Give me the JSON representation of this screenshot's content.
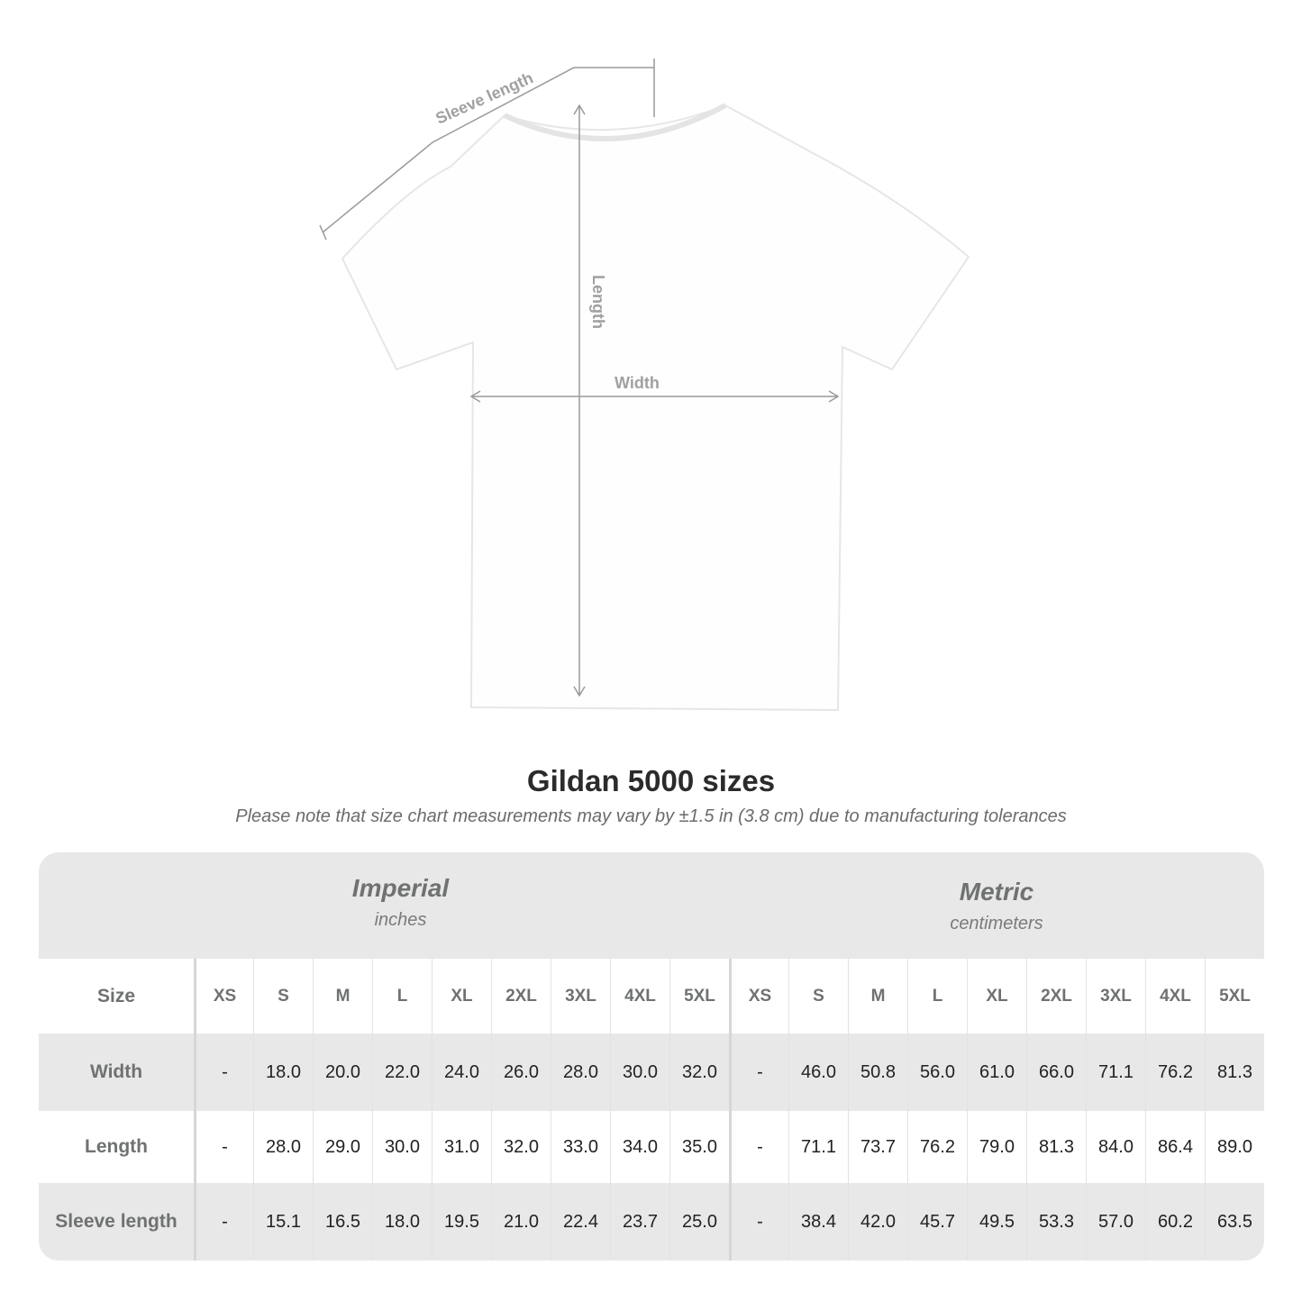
{
  "diagram": {
    "labels": {
      "sleeve": "Sleeve length",
      "length": "Length",
      "width": "Width"
    },
    "shirt_color": "#ffffff",
    "line_color": "#9a9a9a"
  },
  "title": "Gildan 5000 sizes",
  "subtitle": "Please note that size chart measurements may vary by ±1.5 in (3.8 cm) due to manufacturing tolerances",
  "table": {
    "imperial": {
      "name": "Imperial",
      "unit": "inches"
    },
    "metric": {
      "name": "Metric",
      "unit": "centimeters"
    },
    "size_label": "Size",
    "sizes": [
      "XS",
      "S",
      "M",
      "L",
      "XL",
      "2XL",
      "3XL",
      "4XL",
      "5XL"
    ],
    "rows": [
      {
        "label": "Width",
        "imperial": [
          "-",
          "18.0",
          "20.0",
          "22.0",
          "24.0",
          "26.0",
          "28.0",
          "30.0",
          "32.0"
        ],
        "metric": [
          "-",
          "46.0",
          "50.8",
          "56.0",
          "61.0",
          "66.0",
          "71.1",
          "76.2",
          "81.3"
        ]
      },
      {
        "label": "Length",
        "imperial": [
          "-",
          "28.0",
          "29.0",
          "30.0",
          "31.0",
          "32.0",
          "33.0",
          "34.0",
          "35.0"
        ],
        "metric": [
          "-",
          "71.1",
          "73.7",
          "76.2",
          "79.0",
          "81.3",
          "84.0",
          "86.4",
          "89.0"
        ]
      },
      {
        "label": "Sleeve length",
        "imperial": [
          "-",
          "15.1",
          "16.5",
          "18.0",
          "19.5",
          "21.0",
          "22.4",
          "23.7",
          "25.0"
        ],
        "metric": [
          "-",
          "38.4",
          "42.0",
          "45.7",
          "49.5",
          "53.3",
          "57.0",
          "60.2",
          "63.5"
        ]
      }
    ]
  }
}
